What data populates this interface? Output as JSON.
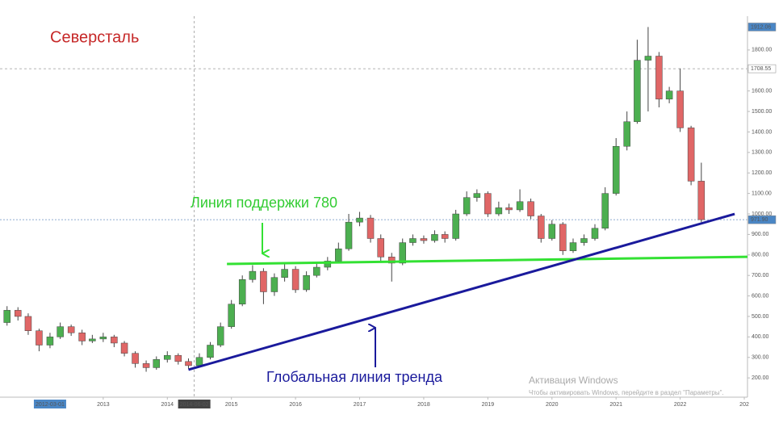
{
  "chart_data": {
    "type": "candlestick",
    "title": "Северсталь",
    "xlim": [
      2011.39,
      2023.05
    ],
    "ylim": [
      106,
      1965
    ],
    "xticks": [
      2013,
      2014,
      2015,
      2016,
      2017,
      2018,
      2019,
      2020,
      2021,
      2022,
      {
        "value": 2023,
        "label": "202"
      }
    ],
    "yticks": [
      {
        "value": 200,
        "label": "200.00"
      },
      {
        "value": 300,
        "label": "300.00"
      },
      {
        "value": 400,
        "label": "400.00"
      },
      {
        "value": 500,
        "label": "500.00"
      },
      {
        "value": 600,
        "label": "600.00"
      },
      {
        "value": 700,
        "label": "700.00"
      },
      {
        "value": 800,
        "label": "800.00"
      },
      {
        "value": 900,
        "label": "900.00"
      },
      {
        "value": 1000,
        "label": "1000.00"
      },
      {
        "value": 1100,
        "label": "1100.00"
      },
      {
        "value": 1200,
        "label": "1200.00"
      },
      {
        "value": 1300,
        "label": "1300.00"
      },
      {
        "value": 1400,
        "label": "1400.00"
      },
      {
        "value": 1500,
        "label": "1500.00"
      },
      {
        "value": 1600,
        "label": "1600.00"
      },
      {
        "value": 1700,
        "label": "1700.00"
      },
      {
        "value": 1800,
        "label": "1800.00"
      }
    ],
    "series": [
      {
        "up_color": "#4caf50",
        "down_color": "#e06666",
        "x": [
          2011.5,
          2011.67,
          2011.83,
          2012.0,
          2012.17,
          2012.33,
          2012.5,
          2012.67,
          2012.83,
          2013.0,
          2013.17,
          2013.33,
          2013.5,
          2013.67,
          2013.83,
          2014.0,
          2014.17,
          2014.33,
          2014.5,
          2014.67,
          2014.83,
          2015.0,
          2015.17,
          2015.33,
          2015.5,
          2015.67,
          2015.83,
          2016.0,
          2016.17,
          2016.33,
          2016.5,
          2016.67,
          2016.83,
          2017.0,
          2017.17,
          2017.33,
          2017.5,
          2017.67,
          2017.83,
          2018.0,
          2018.17,
          2018.33,
          2018.5,
          2018.67,
          2018.83,
          2019.0,
          2019.17,
          2019.33,
          2019.5,
          2019.67,
          2019.83,
          2020.0,
          2020.17,
          2020.33,
          2020.5,
          2020.67,
          2020.83,
          2021.0,
          2021.17,
          2021.33,
          2021.5,
          2021.67,
          2021.83,
          2022.0,
          2022.17,
          2022.33
        ],
        "open": [
          470,
          530,
          500,
          430,
          360,
          400,
          450,
          420,
          380,
          390,
          400,
          370,
          320,
          270,
          250,
          290,
          310,
          280,
          260,
          300,
          360,
          450,
          560,
          680,
          720,
          620,
          690,
          730,
          630,
          700,
          740,
          770,
          830,
          960,
          980,
          880,
          790,
          760,
          860,
          880,
          870,
          900,
          880,
          1000,
          1080,
          1100,
          1000,
          1030,
          1020,
          1060,
          990,
          880,
          950,
          820,
          860,
          880,
          930,
          1100,
          1330,
          1450,
          1750,
          1770,
          1560,
          1600,
          1420,
          1160
        ],
        "high": [
          550,
          545,
          515,
          440,
          420,
          470,
          460,
          435,
          410,
          420,
          410,
          380,
          330,
          285,
          305,
          330,
          320,
          295,
          320,
          375,
          470,
          580,
          700,
          750,
          735,
          710,
          760,
          745,
          720,
          760,
          790,
          860,
          1000,
          1010,
          995,
          900,
          810,
          880,
          900,
          895,
          920,
          915,
          1020,
          1110,
          1120,
          1110,
          1060,
          1050,
          1120,
          1075,
          1000,
          970,
          960,
          880,
          900,
          950,
          1130,
          1370,
          1500,
          1850,
          1912.06,
          1790,
          1620,
          1710,
          1430,
          1250
        ],
        "low": [
          455,
          480,
          410,
          330,
          345,
          390,
          405,
          360,
          370,
          375,
          350,
          305,
          250,
          230,
          240,
          275,
          265,
          245,
          250,
          290,
          350,
          440,
          550,
          665,
          560,
          600,
          670,
          615,
          620,
          690,
          725,
          760,
          820,
          940,
          860,
          770,
          670,
          750,
          845,
          855,
          860,
          860,
          870,
          990,
          1060,
          985,
          990,
          1000,
          1010,
          975,
          860,
          870,
          800,
          810,
          845,
          870,
          920,
          1090,
          1310,
          1440,
          1500,
          1520,
          1540,
          1400,
          1140,
          960
        ],
        "close": [
          530,
          500,
          430,
          360,
          400,
          450,
          420,
          380,
          390,
          400,
          370,
          320,
          270,
          250,
          290,
          310,
          280,
          260,
          300,
          360,
          450,
          560,
          680,
          720,
          620,
          690,
          730,
          630,
          700,
          740,
          770,
          830,
          960,
          980,
          880,
          790,
          760,
          860,
          880,
          870,
          900,
          880,
          1000,
          1080,
          1100,
          1000,
          1030,
          1020,
          1060,
          990,
          880,
          950,
          820,
          860,
          880,
          930,
          1100,
          1330,
          1450,
          1750,
          1770,
          1560,
          1600,
          1420,
          1160,
          972
        ]
      }
    ],
    "lines": [
      {
        "x": [
          2014.93,
          2023.05
        ],
        "y": [
          756,
          791
        ],
        "color": "#33e133",
        "label": "Линия поддержки 780"
      },
      {
        "x": [
          2014.33,
          2022.85
        ],
        "y": [
          240,
          1000
        ],
        "color": "#1a1a9c",
        "label": "Глобальная линия тренда"
      }
    ],
    "price_markers": [
      1912.06,
      1708.55,
      {
        "value": 971.9,
        "label": "971.90"
      }
    ],
    "date_markers": [
      {
        "value": 2012.17,
        "label": "2012-03-01"
      },
      {
        "value": 2014.42,
        "label": "2014-06-02"
      }
    ]
  },
  "watermark": {
    "title": "Активация Windows",
    "text": "Чтобы активировать Windows, перейдите в раздел \"Параметры\"."
  }
}
